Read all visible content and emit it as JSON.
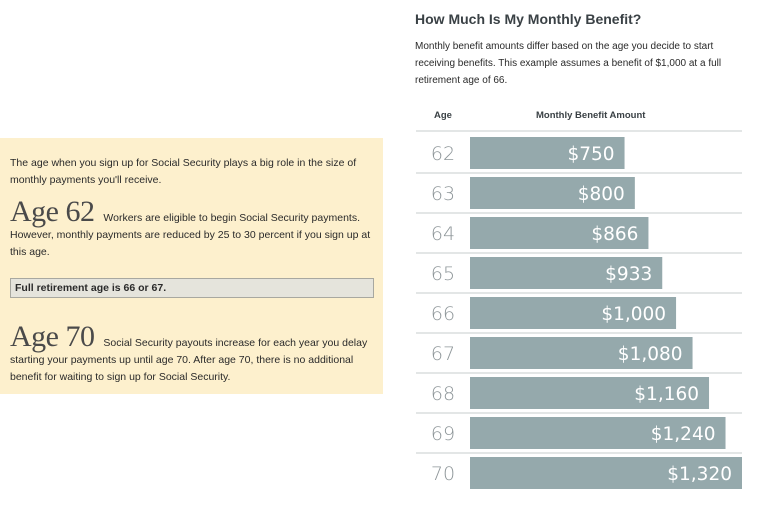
{
  "panel": {
    "intro": "The age when you sign up for Social Security plays a big role in the size of monthly payments you'll receive.",
    "age62": {
      "heading": "Age 62",
      "text": "Workers are eligible to begin Social Security payments. However, monthly payments are reduced by 25 to 30 percent if you sign up at this age."
    },
    "full_retirement": "Full retirement age is 66 or 67.",
    "age70": {
      "heading": "Age 70",
      "text": "Social Security payouts increase for each year you delay starting your payments up until age 70. After age 70, there is no additional benefit for waiting to sign up for Social Security."
    }
  },
  "chart": {
    "title": "How Much Is My Monthly Benefit?",
    "description": "Monthly benefit amounts differ based on the age you decide to start receiving benefits. This example assumes a benefit of $1,000 at a full retirement age of 66.",
    "age_header": "Age",
    "amount_header": "Monthly Benefit Amount"
  },
  "colors": {
    "bar": "#95a9ac",
    "panel": "#fdf0cd",
    "divider": "#c7cccd"
  },
  "chart_data": {
    "type": "bar",
    "orientation": "horizontal",
    "title": "How Much Is My Monthly Benefit?",
    "xlabel": "Monthly Benefit Amount",
    "ylabel": "Age",
    "categories": [
      "62",
      "63",
      "64",
      "65",
      "66",
      "67",
      "68",
      "69",
      "70"
    ],
    "values": [
      750,
      800,
      866,
      933,
      1000,
      1080,
      1160,
      1240,
      1320
    ],
    "data_labels": [
      "$750",
      "$800",
      "$866",
      "$933",
      "$1,000",
      "$1,080",
      "$1,160",
      "$1,240",
      "$1,320"
    ],
    "xlim": [
      0,
      1320
    ],
    "grid": false,
    "legend": "none"
  }
}
